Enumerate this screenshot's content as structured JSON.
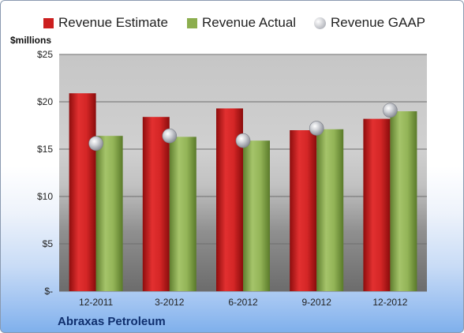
{
  "colors": {
    "estimate": "#cc1f1f",
    "actual": "#8cae4e",
    "gaap": "#b9bcc4"
  },
  "chart_data": {
    "type": "bar",
    "units_label": "$millions",
    "footer": "Abraxas Petroleum",
    "categories": [
      "12-2011",
      "3-2012",
      "6-2012",
      "9-2012",
      "12-2012"
    ],
    "series": [
      {
        "name": "Revenue Estimate",
        "kind": "bar",
        "values": [
          20.9,
          18.4,
          19.3,
          17.0,
          18.2
        ]
      },
      {
        "name": "Revenue Actual",
        "kind": "bar",
        "values": [
          16.4,
          16.3,
          15.9,
          17.1,
          19.0
        ]
      },
      {
        "name": "Revenue GAAP",
        "kind": "marker",
        "values": [
          15.6,
          16.4,
          15.9,
          17.2,
          19.1
        ]
      }
    ],
    "ylim": [
      0,
      25
    ],
    "yticks": [
      0,
      5,
      10,
      15,
      20,
      25
    ],
    "ytick_labels": [
      "$-",
      "$5",
      "$10",
      "$15",
      "$20",
      "$25"
    ],
    "grid": true,
    "legend": "top"
  }
}
